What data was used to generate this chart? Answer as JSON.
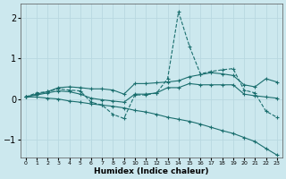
{
  "xlabel": "Humidex (Indice chaleur)",
  "bg_color": "#cce8ee",
  "grid_color": "#b8d8e0",
  "line_color": "#1a6e6e",
  "xlim": [
    -0.5,
    23.5
  ],
  "ylim": [
    -1.45,
    2.35
  ],
  "xticks": [
    0,
    1,
    2,
    3,
    4,
    5,
    6,
    7,
    8,
    9,
    10,
    11,
    12,
    13,
    14,
    15,
    16,
    17,
    18,
    19,
    20,
    21,
    22,
    23
  ],
  "yticks": [
    -1,
    0,
    1,
    2
  ],
  "lines": [
    {
      "x": [
        0,
        1,
        2,
        3,
        4,
        5,
        6,
        7,
        8,
        9,
        10,
        11,
        12,
        13,
        14,
        15,
        16,
        17,
        18,
        19,
        20,
        21,
        22,
        23
      ],
      "y": [
        0.05,
        0.15,
        0.18,
        0.25,
        0.22,
        0.2,
        -0.08,
        -0.15,
        -0.38,
        -0.48,
        0.1,
        0.1,
        0.15,
        0.5,
        2.15,
        1.3,
        0.62,
        0.68,
        0.72,
        0.75,
        0.22,
        0.15,
        -0.3,
        -0.45
      ],
      "linestyle": "--",
      "marker": "+"
    },
    {
      "x": [
        0,
        1,
        2,
        3,
        4,
        5,
        6,
        7,
        8,
        9,
        10,
        11,
        12,
        13,
        14,
        15,
        16,
        17,
        18,
        19,
        20,
        21,
        22,
        23
      ],
      "y": [
        0.05,
        0.12,
        0.18,
        0.28,
        0.3,
        0.28,
        0.25,
        0.25,
        0.22,
        0.12,
        0.38,
        0.38,
        0.4,
        0.42,
        0.45,
        0.55,
        0.6,
        0.65,
        0.62,
        0.58,
        0.35,
        0.3,
        0.5,
        0.42
      ],
      "linestyle": "-",
      "marker": "+"
    },
    {
      "x": [
        0,
        1,
        2,
        3,
        4,
        5,
        6,
        7,
        8,
        9,
        10,
        11,
        12,
        13,
        14,
        15,
        16,
        17,
        18,
        19,
        20,
        21,
        22,
        23
      ],
      "y": [
        0.05,
        0.1,
        0.15,
        0.2,
        0.18,
        0.12,
        0.02,
        -0.02,
        -0.05,
        -0.08,
        0.12,
        0.12,
        0.15,
        0.28,
        0.28,
        0.38,
        0.35,
        0.35,
        0.35,
        0.35,
        0.12,
        0.08,
        0.05,
        0.02
      ],
      "linestyle": "-",
      "marker": "+"
    },
    {
      "x": [
        0,
        1,
        2,
        3,
        4,
        5,
        6,
        7,
        8,
        9,
        10,
        11,
        12,
        13,
        14,
        15,
        16,
        17,
        18,
        19,
        20,
        21,
        22,
        23
      ],
      "y": [
        0.05,
        0.05,
        0.02,
        0.0,
        -0.05,
        -0.08,
        -0.12,
        -0.15,
        -0.18,
        -0.22,
        -0.28,
        -0.32,
        -0.38,
        -0.45,
        -0.5,
        -0.55,
        -0.62,
        -0.7,
        -0.78,
        -0.85,
        -0.95,
        -1.05,
        -1.22,
        -1.38
      ],
      "linestyle": "-",
      "marker": "+"
    }
  ]
}
